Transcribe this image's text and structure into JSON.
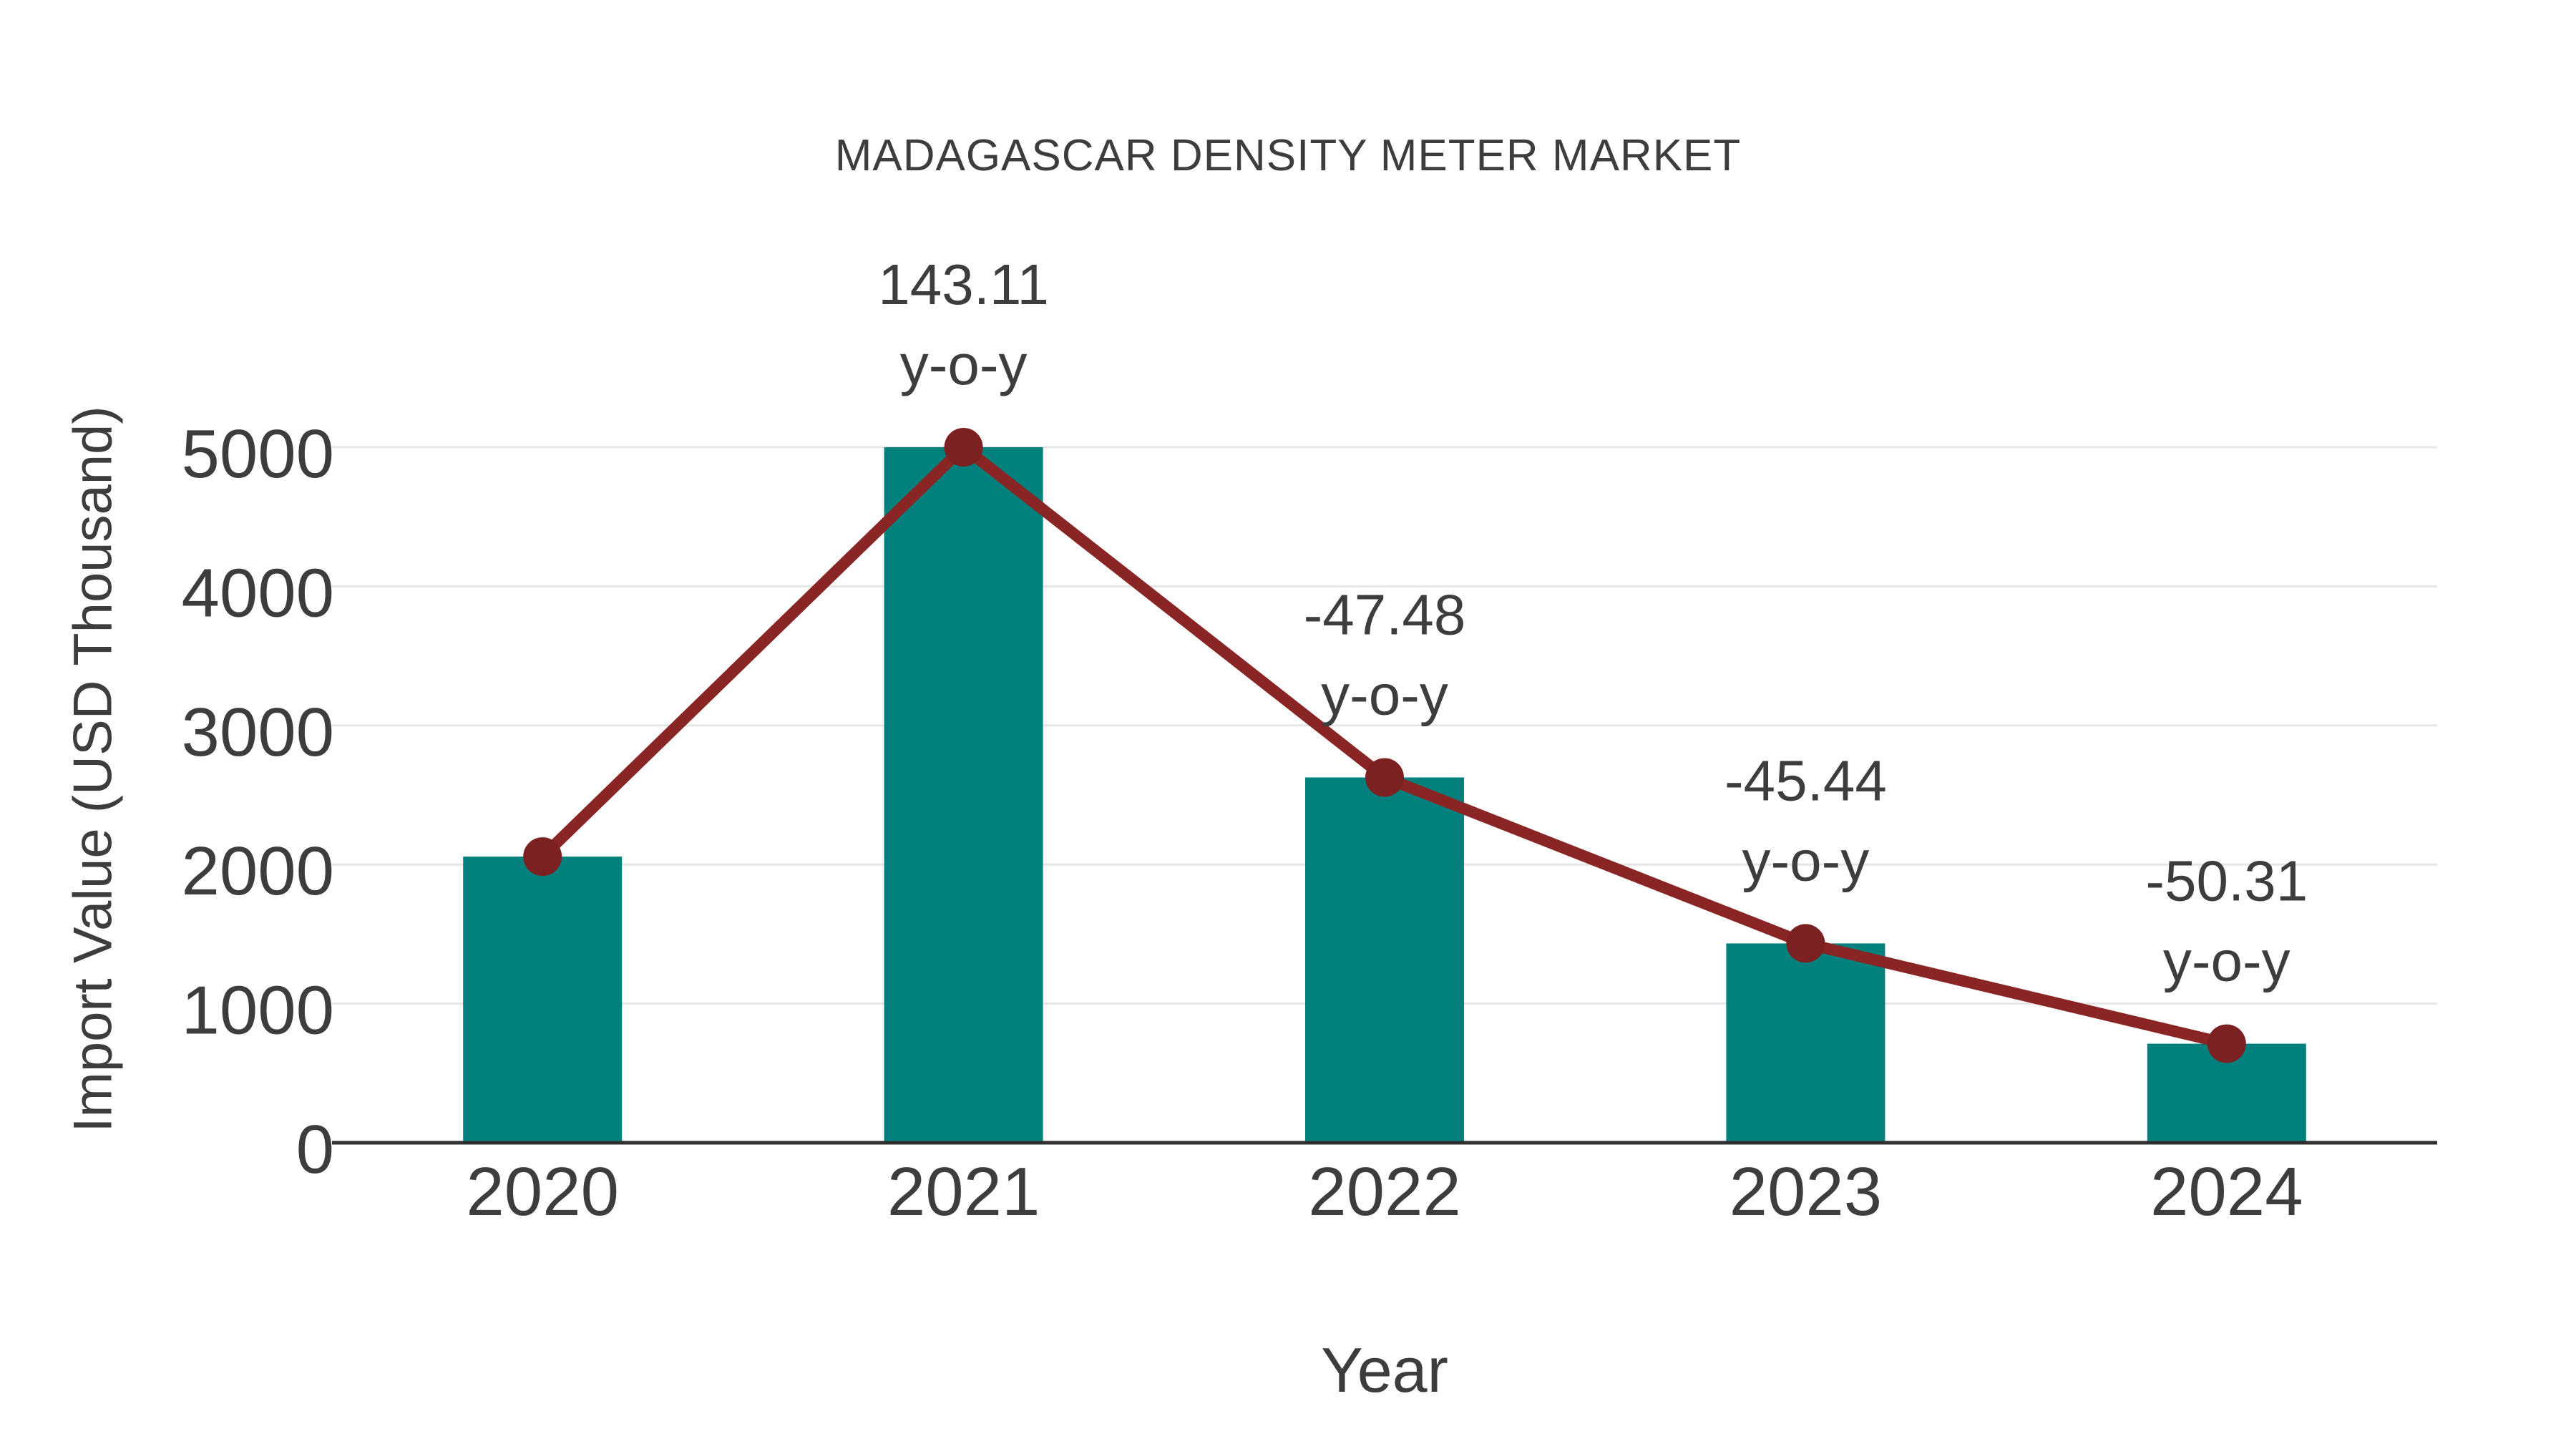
{
  "chart_data": {
    "type": "bar",
    "title": "MADAGASCAR DENSITY METER MARKET",
    "xlabel": "Year",
    "ylabel": "Import Value (USD Thousand)",
    "categories": [
      "2020",
      "2021",
      "2022",
      "2023",
      "2024"
    ],
    "series": [
      {
        "name": "Import Value bars",
        "type": "bar",
        "color": "#02807d",
        "values": [
          2057,
          5000,
          2626,
          1433,
          712
        ]
      },
      {
        "name": "Year-over-year trend line",
        "type": "line",
        "color": "#8a2525",
        "marker_color": "#7b2121",
        "values": [
          2057,
          5000,
          2626,
          1433,
          712
        ]
      }
    ],
    "point_labels": [
      {
        "value": "",
        "suffix": ""
      },
      {
        "value": "143.11",
        "suffix": "y-o-y"
      },
      {
        "value": "-47.48",
        "suffix": "y-o-y"
      },
      {
        "value": "-45.44",
        "suffix": "y-o-y"
      },
      {
        "value": "-50.31",
        "suffix": "y-o-y"
      }
    ],
    "yticks": [
      0,
      1000,
      2000,
      3000,
      4000,
      5000
    ],
    "ylim": [
      0,
      5000
    ],
    "grid": "horizontal",
    "legend_position": "none",
    "colors": {
      "bar": "#02807d",
      "line": "#8a2525",
      "marker": "#7b2121",
      "text": "#3d3d3d",
      "grid": "#e6e6e6",
      "axis": "#2f2f2f",
      "background": "#ffffff"
    }
  }
}
